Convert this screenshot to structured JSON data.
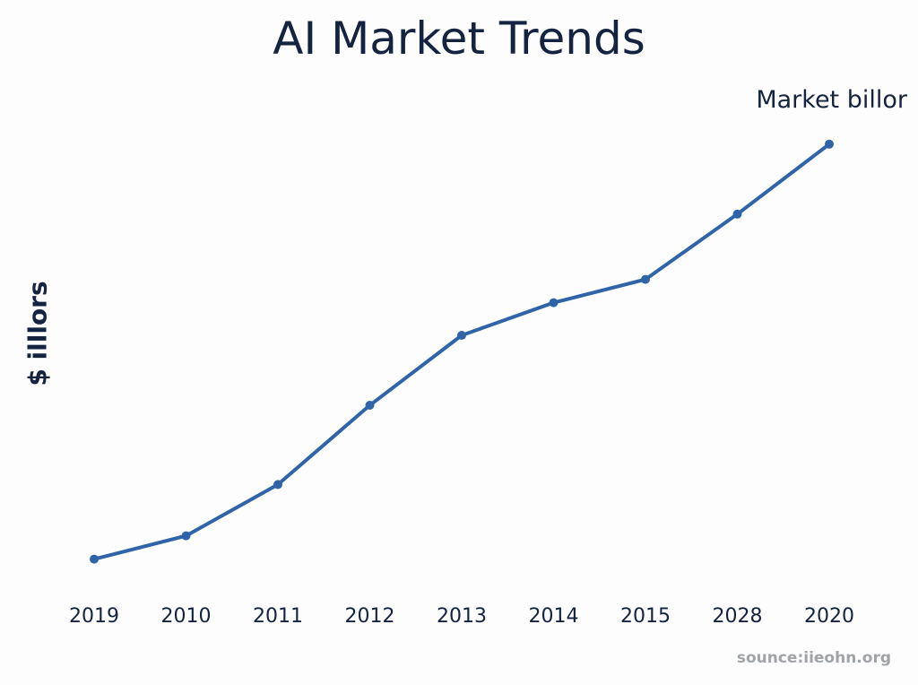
{
  "chart_data": {
    "type": "line",
    "title": "AI Market Trends",
    "xlabel": "",
    "ylabel": "$ illlors",
    "categories": [
      "2019",
      "2010",
      "2011",
      "2012",
      "2013",
      "2014",
      "2015",
      "2028",
      "2020"
    ],
    "series": [
      {
        "name": "Market billor",
        "values": [
          7,
          12,
          23,
          40,
          55,
          62,
          67,
          81,
          96
        ],
        "color": "#2f65a8"
      }
    ],
    "ylim": [
      0,
      100
    ],
    "grid": false,
    "legend": "top-right",
    "source": "sounce:iieohn.org"
  }
}
